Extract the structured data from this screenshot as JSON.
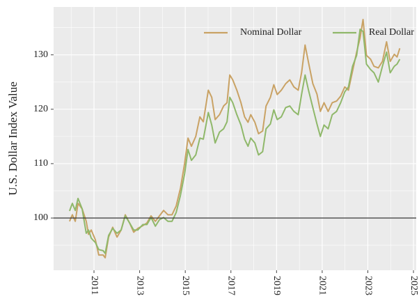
{
  "chart_data": {
    "type": "line",
    "ylabel": "U.S. Dollar Index Value",
    "x": [
      2009.93,
      2010.05,
      2010.18,
      2010.3,
      2010.48,
      2010.66,
      2010.76,
      2010.88,
      2011.06,
      2011.21,
      2011.4,
      2011.49,
      2011.64,
      2011.82,
      2012.01,
      2012.19,
      2012.37,
      2012.56,
      2012.74,
      2012.92,
      2013.14,
      2013.32,
      2013.5,
      2013.69,
      2013.87,
      2014.05,
      2014.24,
      2014.42,
      2014.6,
      2014.79,
      2014.97,
      2015.12,
      2015.27,
      2015.46,
      2015.64,
      2015.79,
      2016.01,
      2016.16,
      2016.31,
      2016.5,
      2016.68,
      2016.83,
      2016.95,
      2017.08,
      2017.26,
      2017.44,
      2017.6,
      2017.75,
      2017.87,
      2018.05,
      2018.21,
      2018.39,
      2018.54,
      2018.73,
      2018.88,
      2019.03,
      2019.21,
      2019.4,
      2019.58,
      2019.76,
      2019.95,
      2020.1,
      2020.25,
      2020.4,
      2020.59,
      2020.77,
      2020.92,
      2021.08,
      2021.26,
      2021.44,
      2021.63,
      2021.81,
      2021.99,
      2022.15,
      2022.33,
      2022.51,
      2022.66,
      2022.79,
      2022.94,
      2023.12,
      2023.27,
      2023.46,
      2023.64,
      2023.82,
      2023.98,
      2024.16,
      2024.28,
      2024.4
    ],
    "series": [
      {
        "name": "Nominal Dollar",
        "color": "#c9a264",
        "values": [
          99.4,
          100.6,
          99.4,
          102.7,
          101.7,
          99.4,
          97,
          97.8,
          96,
          93.2,
          93.2,
          92.7,
          96.5,
          98.3,
          96.5,
          97.8,
          100.6,
          99.1,
          97.4,
          98.1,
          98.6,
          99.1,
          100.4,
          99.4,
          100.4,
          101.4,
          100.6,
          100.6,
          102.2,
          105.5,
          110,
          114.7,
          113.2,
          115,
          118.6,
          117.7,
          123.5,
          122.2,
          118.1,
          119,
          120.6,
          121.2,
          126.3,
          125.4,
          123.5,
          121.2,
          118.6,
          117.6,
          119,
          117.6,
          115.5,
          116,
          120.6,
          122.2,
          124.5,
          122.7,
          123.5,
          124.7,
          125.4,
          124.1,
          123.5,
          126.8,
          131.8,
          128.6,
          124.7,
          122.8,
          119.6,
          121.2,
          119.6,
          121.2,
          121.5,
          122.4,
          124.1,
          123.5,
          127,
          130.5,
          133.1,
          136.5,
          129.9,
          129.2,
          127.9,
          127.6,
          128.8,
          132.4,
          128.8,
          130.1,
          129.6,
          131.2
        ]
      },
      {
        "name": "Real Dollar",
        "color": "#8fb86a",
        "values": [
          101.3,
          102.7,
          101.4,
          103.6,
          101.7,
          97.2,
          97.8,
          96.3,
          95.5,
          94.2,
          94,
          93.5,
          96.8,
          98.1,
          97.2,
          97.8,
          100.4,
          99.1,
          97.8,
          97.8,
          98.8,
          98.8,
          100.1,
          98.5,
          99.7,
          100.1,
          99.4,
          99.4,
          101,
          104.2,
          108.1,
          112.6,
          110.6,
          111.6,
          114.7,
          114.5,
          119.4,
          117.1,
          113.8,
          115.8,
          116.4,
          117.7,
          122.2,
          121.2,
          119,
          117.1,
          114.5,
          113.2,
          114.7,
          113.8,
          111.6,
          112.2,
          116.4,
          117.3,
          119.9,
          118.1,
          118.6,
          120.3,
          120.6,
          119.6,
          119,
          122.8,
          126.3,
          123.5,
          120.3,
          117.3,
          115,
          117.1,
          116.4,
          119,
          119.6,
          121.2,
          123.2,
          124.1,
          127.9,
          129.9,
          134.7,
          134.3,
          128.3,
          127.3,
          126.7,
          125,
          127.9,
          130.5,
          126.7,
          127.9,
          128.3,
          129.2
        ]
      }
    ],
    "hline": 100,
    "xlim": [
      2009.23,
      2025.12
    ],
    "ylim": [
      90.4,
      138.8
    ],
    "xticks": [
      2011,
      2013,
      2015,
      2017,
      2019,
      2021,
      2023,
      2025
    ],
    "yticks": [
      100,
      110,
      120,
      130
    ],
    "x_minor_ticks": [
      2010,
      2012,
      2014,
      2016,
      2018,
      2020,
      2022,
      2024
    ],
    "y_minor_ticks": [
      95,
      105,
      115,
      125,
      135
    ],
    "grid": true,
    "legend_loc": "upper right"
  }
}
